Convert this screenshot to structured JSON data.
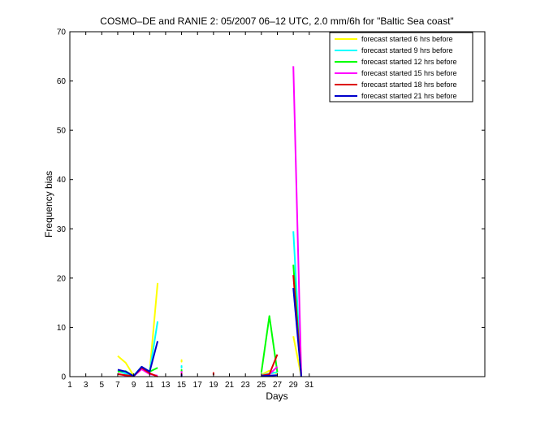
{
  "chart_data": {
    "type": "line",
    "title": "COSMO–DE and RANIE 2: 05/2007 06–12 UTC, 2.0 mm/6h for \"Baltic Sea coast\"",
    "xlabel": "Days",
    "ylabel": "Frequency bias",
    "xlim": [
      1,
      53
    ],
    "ylim": [
      0,
      70
    ],
    "xticks": [
      1,
      3,
      5,
      7,
      9,
      11,
      13,
      15,
      17,
      19,
      21,
      23,
      25,
      27,
      29,
      31
    ],
    "yticks": [
      0,
      10,
      20,
      30,
      40,
      50,
      60,
      70
    ],
    "legend_position": "top-right",
    "series": [
      {
        "name": "forecast started 6 hrs before",
        "color": "#ffff00",
        "segments": [
          [
            [
              7,
              4.2
            ],
            [
              8,
              2.8
            ],
            [
              9,
              0.2
            ],
            [
              10,
              2.0
            ],
            [
              11,
              1.0
            ],
            [
              12,
              19.0
            ]
          ],
          [
            [
              15,
              3.2
            ]
          ],
          [
            [
              25,
              0.4
            ],
            [
              26,
              1.2
            ],
            [
              27,
              0.6
            ]
          ],
          [
            [
              29,
              8.2
            ],
            [
              30,
              0.0
            ]
          ]
        ]
      },
      {
        "name": "forecast started 9 hrs before",
        "color": "#00ffff",
        "segments": [
          [
            [
              7,
              1.2
            ],
            [
              8,
              0.6
            ],
            [
              9,
              0.2
            ],
            [
              10,
              2.0
            ],
            [
              11,
              1.0
            ],
            [
              12,
              11.2
            ]
          ],
          [
            [
              15,
              2.0
            ]
          ],
          [
            [
              25,
              0.3
            ],
            [
              26,
              0.6
            ],
            [
              27,
              0.9
            ]
          ],
          [
            [
              29,
              29.5
            ],
            [
              30,
              0.0
            ]
          ]
        ]
      },
      {
        "name": "forecast started 12 hrs before",
        "color": "#00ff00",
        "segments": [
          [
            [
              7,
              1.0
            ],
            [
              8,
              1.1
            ],
            [
              9,
              0.1
            ],
            [
              10,
              1.8
            ],
            [
              11,
              1.0
            ],
            [
              12,
              1.8
            ]
          ],
          [
            [
              15,
              1.2
            ]
          ],
          [
            [
              25,
              0.8
            ],
            [
              26,
              12.3
            ],
            [
              27,
              0.9
            ]
          ],
          [
            [
              29,
              22.7
            ],
            [
              30,
              0.0
            ]
          ]
        ]
      },
      {
        "name": "forecast started 15 hrs before",
        "color": "#ff00ff",
        "segments": [
          [
            [
              7,
              0.6
            ],
            [
              8,
              0.2
            ],
            [
              9,
              0.1
            ],
            [
              10,
              1.5
            ],
            [
              11,
              0.5
            ],
            [
              12,
              0.2
            ]
          ],
          [
            [
              15,
              0.8
            ]
          ],
          [
            [
              25,
              0.2
            ],
            [
              26,
              0.5
            ],
            [
              27,
              2.0
            ]
          ],
          [
            [
              29,
              63.0
            ],
            [
              30,
              0.0
            ]
          ]
        ]
      },
      {
        "name": "forecast started 18 hrs before",
        "color": "#dd0000",
        "segments": [
          [
            [
              7,
              0.5
            ],
            [
              8,
              0.3
            ],
            [
              9,
              0.1
            ],
            [
              10,
              1.8
            ],
            [
              11,
              0.7
            ],
            [
              12,
              0.0
            ]
          ],
          [
            [
              15,
              0.4
            ]
          ],
          [
            [
              19,
              0.6
            ]
          ],
          [
            [
              25,
              0.2
            ],
            [
              26,
              0.5
            ],
            [
              27,
              4.5
            ]
          ],
          [
            [
              29,
              20.6
            ],
            [
              30,
              0.0
            ]
          ]
        ]
      },
      {
        "name": "forecast started 21 hrs before",
        "color": "#0000cc",
        "segments": [
          [
            [
              7,
              1.4
            ],
            [
              8,
              1.0
            ],
            [
              9,
              0.1
            ],
            [
              10,
              2.0
            ],
            [
              11,
              1.0
            ],
            [
              12,
              7.2
            ]
          ],
          [
            [
              15,
              0.2
            ]
          ],
          [
            [
              25,
              0.1
            ],
            [
              26,
              0.2
            ],
            [
              27,
              0.3
            ]
          ],
          [
            [
              29,
              18.0
            ],
            [
              30,
              0.0
            ]
          ]
        ]
      }
    ]
  }
}
